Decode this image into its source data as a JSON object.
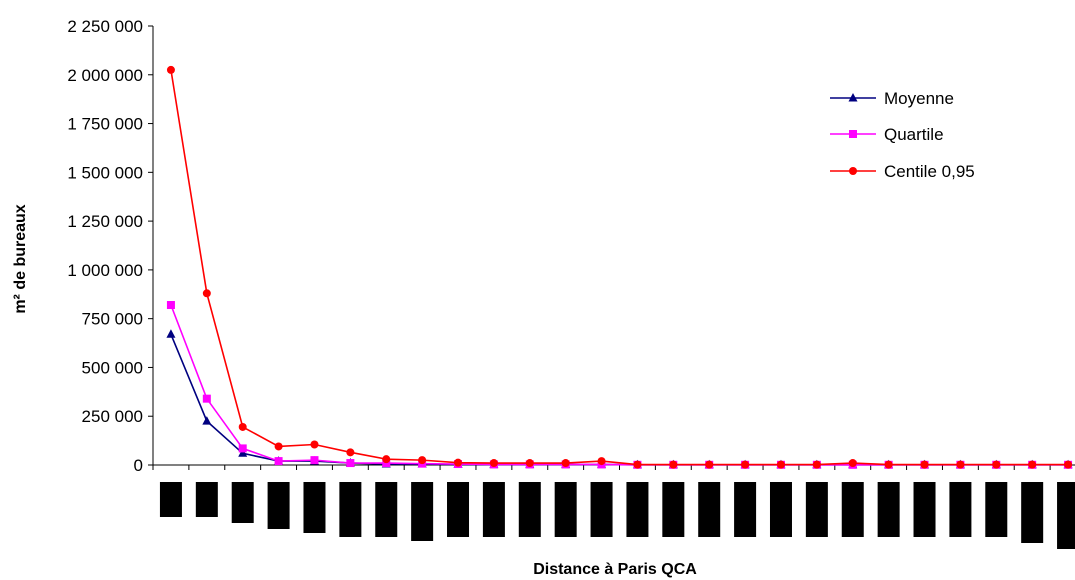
{
  "chart_data": {
    "type": "line",
    "title": "",
    "xlabel": "Distance à Paris QCA",
    "ylabel": "m² de bureaux",
    "ylim": [
      0,
      2250000
    ],
    "yticks": [
      0,
      250000,
      500000,
      750000,
      1000000,
      1250000,
      1500000,
      1750000,
      2000000,
      2250000
    ],
    "ytick_labels": [
      "0",
      "250 000",
      "500 000",
      "750 000",
      "1 000 000",
      "1 250 000",
      "1 500 000",
      "1 750 000",
      "2 000 000",
      "2 250 000"
    ],
    "x_category_count": 26,
    "x_category_labels_note": "category labels rendered as solid black boxes (redacted)",
    "legend_position": "top-right",
    "grid": false,
    "series": [
      {
        "name": "Moyenne",
        "color": "#000080",
        "marker": "triangle",
        "values": [
          670000,
          225000,
          60000,
          20000,
          20000,
          10000,
          5000,
          5000,
          3000,
          2000,
          2000,
          2000,
          2000,
          1000,
          1000,
          1000,
          1000,
          1000,
          1000,
          1000,
          1000,
          1000,
          1000,
          1000,
          1000,
          1000
        ]
      },
      {
        "name": "Quartile",
        "color": "#FF00FF",
        "marker": "square",
        "values": [
          820000,
          340000,
          85000,
          20000,
          25000,
          10000,
          10000,
          7000,
          5000,
          3000,
          3000,
          3000,
          3000,
          1000,
          1000,
          1000,
          1000,
          1000,
          1000,
          1000,
          1000,
          1000,
          1000,
          1000,
          1000,
          1000
        ]
      },
      {
        "name": "Centile 0,95",
        "color": "#FF0000",
        "marker": "circle",
        "values": [
          2025000,
          880000,
          195000,
          95000,
          105000,
          65000,
          30000,
          25000,
          12000,
          10000,
          10000,
          10000,
          20000,
          2000,
          2000,
          2000,
          2000,
          2000,
          2000,
          10000,
          2000,
          2000,
          2000,
          2000,
          2000,
          2000
        ]
      }
    ]
  }
}
